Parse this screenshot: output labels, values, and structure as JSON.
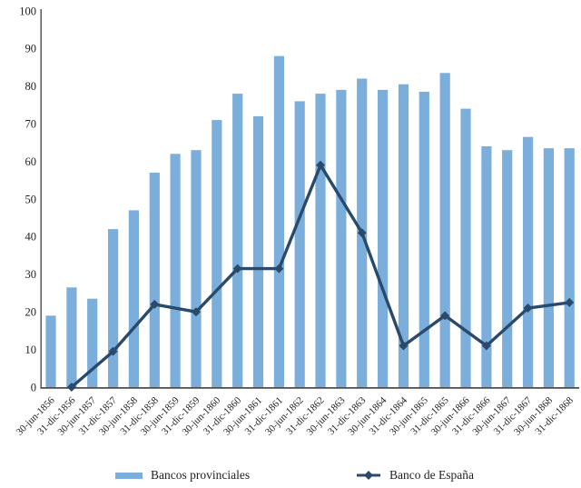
{
  "chart_data": {
    "type": "bar",
    "title": "",
    "xlabel": "",
    "ylabel": "",
    "categories": [
      "30-jun-1856",
      "31-dic-1856",
      "30-jun-1857",
      "31-dic-1857",
      "30-jun-1858",
      "31-dic-1858",
      "30-jun-1859",
      "31-dic-1859",
      "30-jun-1860",
      "31-dic-1860",
      "30-jun-1861",
      "31-dic-1861",
      "30-jun-1862",
      "31-dic-1862",
      "30-jun-1863",
      "31-dic-1863",
      "30-jun-1864",
      "31-dic-1864",
      "30-jun-1865",
      "31-dic-1865",
      "30-jun-1866",
      "31-dic-1866",
      "30-jun-1867",
      "31-dic-1867",
      "30-jun-1868",
      "31-dic-1868"
    ],
    "series": [
      {
        "name": "Bancos provinciales",
        "type": "bar",
        "color": "#7BAEDB",
        "values": [
          19,
          26.5,
          23.5,
          42,
          47,
          57,
          62,
          63,
          71,
          78,
          72,
          88,
          76,
          78,
          79,
          82,
          79,
          80.5,
          78.5,
          83.5,
          74,
          64,
          63,
          66.5,
          63.5,
          63.5
        ]
      },
      {
        "name": "Banco de España",
        "type": "line",
        "color": "#2A4A6C",
        "marker": "diamond",
        "categories": [
          "31-dic-1856",
          "31-dic-1857",
          "31-dic-1858",
          "31-dic-1859",
          "31-dic-1860",
          "31-dic-1861",
          "31-dic-1862",
          "31-dic-1863",
          "31-dic-1864",
          "31-dic-1865",
          "31-dic-1866",
          "31-dic-1867",
          "31-dic-1868"
        ],
        "category_indices": [
          1,
          3,
          5,
          7,
          9,
          11,
          13,
          15,
          17,
          19,
          21,
          23,
          25
        ],
        "values": [
          0,
          9.5,
          22,
          20,
          31.5,
          31.5,
          59,
          41,
          11,
          19,
          11,
          21,
          22.5
        ]
      }
    ],
    "ylim": [
      0,
      100
    ],
    "yticks": [
      0,
      10,
      20,
      30,
      40,
      50,
      60,
      70,
      80,
      90,
      100
    ],
    "grid": false,
    "legend_position": "bottom",
    "x_tick_rotation": 45,
    "axis_color": "#595959",
    "text_color": "#1f1f1f"
  }
}
